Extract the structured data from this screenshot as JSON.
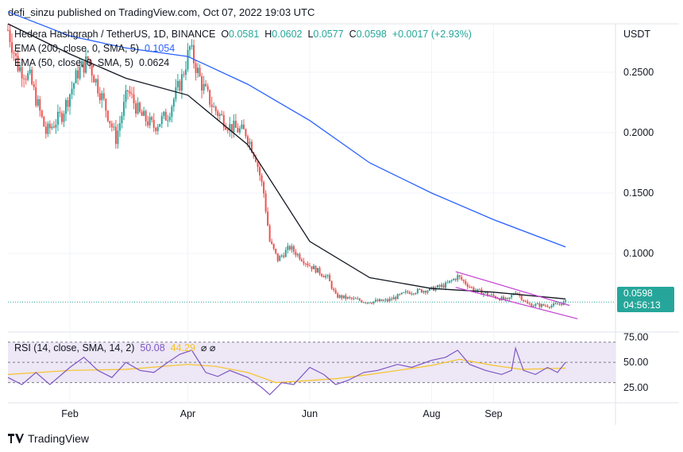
{
  "publisher": "defi_sinzu published on TradingView.com, Oct 07, 2022 19:03 UTC",
  "footer_brand": "TradingView",
  "colors": {
    "up": "#26a69a",
    "down": "#ef5350",
    "ema200": "#2962ff",
    "ema50": "#131722",
    "channel": "#c53dd6",
    "rsi": "#7e57c2",
    "rsi_ma": "#f7c325",
    "rsi_band": "#ede7f6"
  },
  "chart_data": [
    {
      "type": "candlestick",
      "symbol": "Hedera Hashgraph / TetherUS, 1D, BINANCE",
      "ohlc_labels": {
        "o": "O",
        "h": "H",
        "l": "L",
        "c": "C"
      },
      "ohlc": {
        "open": "0.0581",
        "high": "0.0602",
        "low": "0.0577",
        "close": "0.0598",
        "change": "+0.0017 (+2.93%)"
      },
      "ylabel": "USDT",
      "y_ticks": [
        "0.2500",
        "0.2000",
        "0.1500",
        "0.1000"
      ],
      "y_tick_values": [
        0.25,
        0.2,
        0.15,
        0.1
      ],
      "x_ticks": [
        "Feb",
        "Apr",
        "Jun",
        "Aug",
        "Sep"
      ],
      "x_tick_dates": [
        "2022-02-01",
        "2022-04-01",
        "2022-06-01",
        "2022-08-01",
        "2022-09-01"
      ],
      "x_range": [
        "2022-01-01",
        "2022-11-01"
      ],
      "y_range": [
        0.035,
        0.29
      ],
      "last_price": "0.0598",
      "countdown": "04:56:13",
      "grid": true,
      "indicators": [
        {
          "label": "EMA (200, close, 0, SMA, 5)",
          "value": "0.1054"
        },
        {
          "label": "EMA (50, close, 0, SMA, 5)",
          "value": "0.0624"
        }
      ],
      "anchors": [
        [
          "2022-01-01",
          0.285
        ],
        [
          "2022-01-06",
          0.255
        ],
        [
          "2022-01-12",
          0.245
        ],
        [
          "2022-01-20",
          0.2
        ],
        [
          "2022-01-28",
          0.215
        ],
        [
          "2022-02-05",
          0.25
        ],
        [
          "2022-02-10",
          0.26
        ],
        [
          "2022-02-18",
          0.225
        ],
        [
          "2022-02-24",
          0.195
        ],
        [
          "2022-03-02",
          0.235
        ],
        [
          "2022-03-08",
          0.215
        ],
        [
          "2022-03-15",
          0.205
        ],
        [
          "2022-03-22",
          0.215
        ],
        [
          "2022-03-29",
          0.245
        ],
        [
          "2022-04-02",
          0.27
        ],
        [
          "2022-04-08",
          0.24
        ],
        [
          "2022-04-14",
          0.22
        ],
        [
          "2022-04-22",
          0.205
        ],
        [
          "2022-04-30",
          0.2
        ],
        [
          "2022-05-05",
          0.18
        ],
        [
          "2022-05-09",
          0.15
        ],
        [
          "2022-05-12",
          0.11
        ],
        [
          "2022-05-16",
          0.095
        ],
        [
          "2022-05-22",
          0.105
        ],
        [
          "2022-06-01",
          0.09
        ],
        [
          "2022-06-10",
          0.08
        ],
        [
          "2022-06-14",
          0.065
        ],
        [
          "2022-06-20",
          0.063
        ],
        [
          "2022-06-30",
          0.06
        ],
        [
          "2022-07-10",
          0.061
        ],
        [
          "2022-07-20",
          0.068
        ],
        [
          "2022-07-31",
          0.07
        ],
        [
          "2022-08-08",
          0.074
        ],
        [
          "2022-08-14",
          0.081
        ],
        [
          "2022-08-22",
          0.07
        ],
        [
          "2022-08-31",
          0.065
        ],
        [
          "2022-09-08",
          0.061
        ],
        [
          "2022-09-12",
          0.069
        ],
        [
          "2022-09-18",
          0.058
        ],
        [
          "2022-09-25",
          0.057
        ],
        [
          "2022-10-01",
          0.057
        ],
        [
          "2022-10-07",
          0.0598
        ]
      ],
      "ema200_points": [
        [
          "2022-01-01",
          0.3
        ],
        [
          "2022-02-01",
          0.28
        ],
        [
          "2022-03-01",
          0.27
        ],
        [
          "2022-04-01",
          0.263
        ],
        [
          "2022-05-01",
          0.24
        ],
        [
          "2022-06-01",
          0.21
        ],
        [
          "2022-07-01",
          0.175
        ],
        [
          "2022-08-01",
          0.15
        ],
        [
          "2022-09-01",
          0.128
        ],
        [
          "2022-10-07",
          0.1054
        ]
      ],
      "ema50_points": [
        [
          "2022-01-01",
          0.29
        ],
        [
          "2022-02-01",
          0.265
        ],
        [
          "2022-03-01",
          0.245
        ],
        [
          "2022-04-01",
          0.231
        ],
        [
          "2022-05-01",
          0.19
        ],
        [
          "2022-06-01",
          0.11
        ],
        [
          "2022-07-01",
          0.08
        ],
        [
          "2022-08-01",
          0.071
        ],
        [
          "2022-09-01",
          0.068
        ],
        [
          "2022-10-07",
          0.0624
        ]
      ],
      "channel_upper": [
        [
          "2022-08-13",
          0.085
        ],
        [
          "2022-10-09",
          0.057
        ]
      ],
      "channel_lower": [
        [
          "2022-08-13",
          0.072
        ],
        [
          "2022-10-13",
          0.046
        ]
      ]
    },
    {
      "type": "line",
      "title": "RSI (14, close, SMA, 14, 2)",
      "rsi_value": "50.08",
      "rsi_ma_value": "44.29",
      "y_ticks": [
        "75.00",
        "50.00",
        "25.00"
      ],
      "y_tick_values": [
        75,
        50,
        25
      ],
      "y_range": [
        10,
        80
      ],
      "band": [
        30,
        70
      ],
      "rsi_points": [
        [
          "2022-01-01",
          35
        ],
        [
          "2022-01-08",
          28
        ],
        [
          "2022-01-15",
          40
        ],
        [
          "2022-01-22",
          28
        ],
        [
          "2022-02-01",
          45
        ],
        [
          "2022-02-08",
          55
        ],
        [
          "2022-02-15",
          42
        ],
        [
          "2022-02-22",
          35
        ],
        [
          "2022-03-01",
          50
        ],
        [
          "2022-03-08",
          42
        ],
        [
          "2022-03-15",
          40
        ],
        [
          "2022-03-22",
          50
        ],
        [
          "2022-03-28",
          58
        ],
        [
          "2022-04-03",
          62
        ],
        [
          "2022-04-10",
          40
        ],
        [
          "2022-04-16",
          36
        ],
        [
          "2022-04-22",
          42
        ],
        [
          "2022-05-01",
          35
        ],
        [
          "2022-05-08",
          25
        ],
        [
          "2022-05-12",
          18
        ],
        [
          "2022-05-18",
          30
        ],
        [
          "2022-05-24",
          28
        ],
        [
          "2022-06-01",
          45
        ],
        [
          "2022-06-08",
          38
        ],
        [
          "2022-06-14",
          28
        ],
        [
          "2022-06-20",
          32
        ],
        [
          "2022-06-28",
          40
        ],
        [
          "2022-07-05",
          42
        ],
        [
          "2022-07-15",
          48
        ],
        [
          "2022-07-22",
          45
        ],
        [
          "2022-08-01",
          52
        ],
        [
          "2022-08-08",
          55
        ],
        [
          "2022-08-14",
          62
        ],
        [
          "2022-08-20",
          48
        ],
        [
          "2022-08-28",
          42
        ],
        [
          "2022-09-05",
          38
        ],
        [
          "2022-09-10",
          42
        ],
        [
          "2022-09-12",
          64
        ],
        [
          "2022-09-16",
          42
        ],
        [
          "2022-09-22",
          38
        ],
        [
          "2022-09-28",
          45
        ],
        [
          "2022-10-03",
          40
        ],
        [
          "2022-10-07",
          50.08
        ]
      ],
      "rsi_ma_points": [
        [
          "2022-01-01",
          38
        ],
        [
          "2022-02-01",
          42
        ],
        [
          "2022-03-01",
          43
        ],
        [
          "2022-04-01",
          48
        ],
        [
          "2022-04-15",
          46
        ],
        [
          "2022-05-01",
          40
        ],
        [
          "2022-05-15",
          30
        ],
        [
          "2022-06-01",
          32
        ],
        [
          "2022-06-15",
          34
        ],
        [
          "2022-07-01",
          38
        ],
        [
          "2022-07-15",
          42
        ],
        [
          "2022-08-01",
          47
        ],
        [
          "2022-08-15",
          53
        ],
        [
          "2022-09-01",
          47
        ],
        [
          "2022-09-15",
          43
        ],
        [
          "2022-10-01",
          44
        ],
        [
          "2022-10-07",
          44.29
        ]
      ]
    }
  ]
}
